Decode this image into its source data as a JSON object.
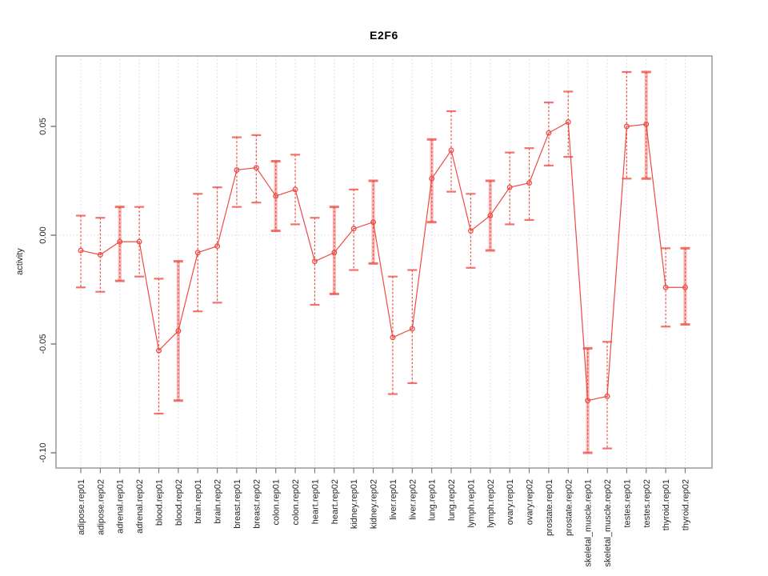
{
  "chart_data": {
    "type": "line",
    "title": "E2F6",
    "ylabel": "activity",
    "xlabel": "",
    "legend": "none",
    "grid": "dotted vertical line at every category; dotted horizontal line at y=0",
    "marker": "open-circle",
    "ylim": [
      -0.107,
      0.082
    ],
    "y_ticks": {
      "labels": [
        "0.05",
        "0.00",
        "-0.05",
        "-0.10"
      ],
      "values": [
        0.05,
        0.0,
        -0.05,
        -0.1
      ]
    },
    "categories": [
      "adipose.rep01",
      "adipose.rep02",
      "adrenal.rep01",
      "adrenal.rep02",
      "blood.rep01",
      "blood.rep02",
      "brain.rep01",
      "brain.rep02",
      "breast.rep01",
      "breast.rep02",
      "colon.rep01",
      "colon.rep02",
      "heart.rep01",
      "heart.rep02",
      "kidney.rep01",
      "kidney.rep02",
      "liver.rep01",
      "liver.rep02",
      "lung.rep01",
      "lung.rep02",
      "lymph.rep01",
      "lymph.rep02",
      "ovary.rep01",
      "ovary.rep02",
      "prostate.rep01",
      "prostate.rep02",
      "skeletal_muscle.rep01",
      "skeletal_muscle.rep02",
      "testes.rep01",
      "testes.rep02",
      "thyroid.rep01",
      "thyroid.rep02"
    ],
    "series": [
      {
        "name": "activity",
        "values": [
          -0.007,
          -0.009,
          -0.003,
          -0.003,
          -0.053,
          -0.044,
          -0.008,
          -0.005,
          0.03,
          0.031,
          0.018,
          0.021,
          -0.012,
          -0.008,
          0.003,
          0.006,
          -0.047,
          -0.043,
          0.026,
          0.039,
          0.002,
          0.009,
          0.022,
          0.024,
          0.047,
          0.052,
          -0.076,
          -0.074,
          0.05,
          0.051,
          -0.024,
          -0.024
        ],
        "ci_low": [
          -0.024,
          -0.026,
          -0.021,
          -0.019,
          -0.082,
          -0.076,
          -0.035,
          -0.031,
          0.013,
          0.015,
          0.002,
          0.005,
          -0.032,
          -0.027,
          -0.016,
          -0.013,
          -0.073,
          -0.068,
          0.006,
          0.02,
          -0.015,
          -0.007,
          0.005,
          0.007,
          0.032,
          0.036,
          -0.1,
          -0.098,
          0.026,
          0.026,
          -0.042,
          -0.041
        ],
        "ci_high": [
          0.009,
          0.008,
          0.013,
          0.013,
          -0.02,
          -0.012,
          0.019,
          0.022,
          0.045,
          0.046,
          0.034,
          0.037,
          0.008,
          0.013,
          0.021,
          0.025,
          -0.019,
          -0.016,
          0.044,
          0.057,
          0.019,
          0.025,
          0.038,
          0.04,
          0.061,
          0.066,
          -0.052,
          -0.049,
          0.075,
          0.075,
          -0.006,
          -0.006
        ],
        "bar_style": [
          "thin",
          "thin",
          "thick",
          "thin",
          "thin",
          "thick",
          "thin",
          "thin",
          "thin",
          "thin",
          "thick",
          "thin",
          "thin",
          "thick",
          "thin",
          "thick",
          "thin",
          "thin",
          "thick",
          "thin",
          "thin",
          "thick",
          "thin",
          "thin",
          "thin",
          "thin",
          "thick",
          "thin",
          "thin",
          "thick",
          "thin",
          "thick"
        ]
      }
    ],
    "colors": {
      "line": "#EE4B44",
      "band": "rgba(238,80,74,0.40)",
      "cap": "rgba(238,75,68,0.78)",
      "grid": "#d8d8d8",
      "box": "#9a9a9a",
      "tick": "#7d7d7d",
      "text": "#262626",
      "title": "#000000"
    }
  }
}
